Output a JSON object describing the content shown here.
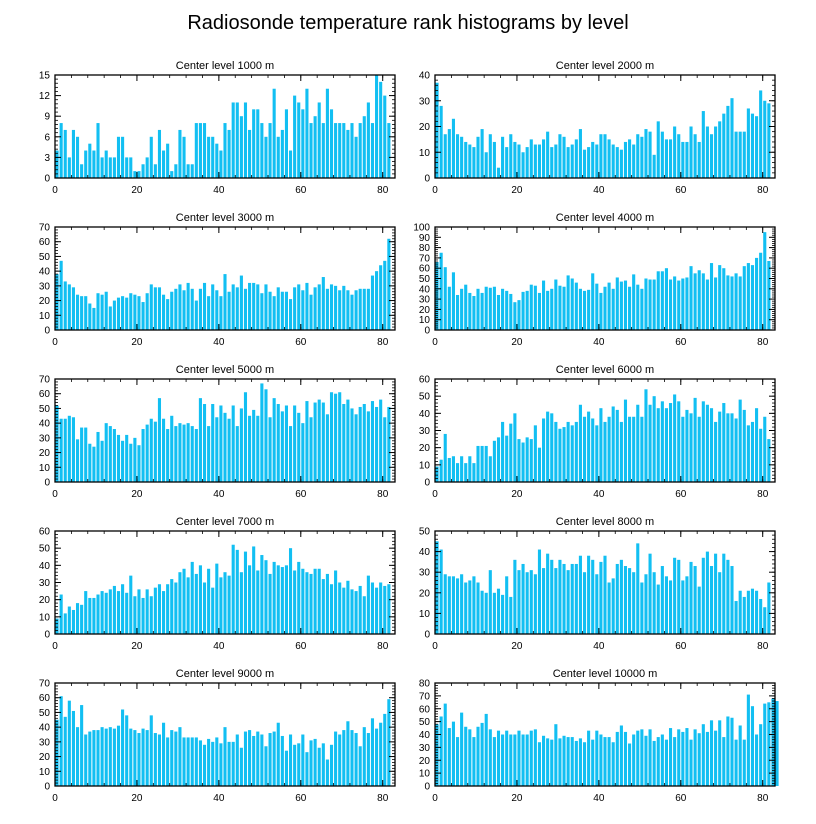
{
  "figure_title": "Radiosonde temperature rank histograms by level",
  "bar_color": "#12bff2",
  "chart_data": [
    {
      "type": "bar",
      "title": "Center level 1000 m",
      "xticks": [
        0,
        20,
        40,
        60,
        80
      ],
      "xlim": [
        0,
        83
      ],
      "ylim": [
        0,
        15
      ],
      "yticks": [
        0,
        3,
        6,
        9,
        12,
        15
      ],
      "values": [
        4,
        8,
        7,
        3,
        7,
        6,
        2,
        4,
        5,
        4,
        8,
        3,
        4,
        3,
        3,
        6,
        6,
        3,
        3,
        1,
        1,
        2,
        3,
        6,
        2,
        7,
        4,
        5,
        1,
        2,
        7,
        6,
        2,
        2,
        8,
        8,
        8,
        6,
        6,
        5,
        4,
        8,
        7,
        11,
        11,
        9,
        11,
        7,
        10,
        10,
        8,
        6,
        8,
        13,
        6,
        7,
        10,
        4,
        12,
        11,
        10,
        13,
        8,
        9,
        11,
        8,
        13,
        10,
        8,
        8,
        8,
        7,
        8,
        6,
        8,
        9,
        11,
        8,
        15,
        14,
        12,
        8
      ]
    },
    {
      "type": "bar",
      "title": "Center level 2000 m",
      "xticks": [
        0,
        20,
        40,
        60,
        80
      ],
      "xlim": [
        0,
        83
      ],
      "ylim": [
        0,
        40
      ],
      "yticks": [
        0,
        10,
        20,
        30,
        40
      ],
      "values": [
        37,
        28,
        17,
        19,
        23,
        17,
        16,
        14,
        13,
        12,
        16,
        19,
        10,
        17,
        14,
        4,
        16,
        12,
        17,
        14,
        13,
        10,
        12,
        15,
        13,
        13,
        15,
        18,
        12,
        13,
        17,
        16,
        12,
        13,
        15,
        19,
        11,
        12,
        14,
        13,
        17,
        17,
        15,
        13,
        12,
        11,
        14,
        15,
        13,
        17,
        16,
        19,
        18,
        9,
        22,
        18,
        15,
        15,
        20,
        17,
        14,
        14,
        20,
        17,
        14,
        26,
        20,
        17,
        20,
        22,
        25,
        28,
        31,
        18,
        18,
        18,
        27,
        25,
        24,
        34,
        30,
        29
      ]
    },
    {
      "type": "bar",
      "title": "Center level 3000 m",
      "xticks": [
        0,
        20,
        40,
        60,
        80
      ],
      "xlim": [
        0,
        83
      ],
      "ylim": [
        0,
        70
      ],
      "yticks": [
        0,
        10,
        20,
        30,
        40,
        50,
        60,
        70
      ],
      "values": [
        38,
        47,
        33,
        31,
        29,
        24,
        23,
        23,
        18,
        15,
        25,
        24,
        26,
        16,
        20,
        22,
        23,
        22,
        25,
        24,
        23,
        19,
        25,
        31,
        29,
        29,
        24,
        21,
        26,
        28,
        31,
        27,
        32,
        28,
        20,
        28,
        32,
        23,
        31,
        27,
        23,
        38,
        26,
        31,
        29,
        37,
        28,
        32,
        32,
        31,
        25,
        31,
        26,
        23,
        29,
        26,
        26,
        21,
        29,
        31,
        27,
        32,
        24,
        29,
        31,
        36,
        28,
        31,
        30,
        27,
        30,
        27,
        24,
        27,
        28,
        28,
        28,
        37,
        40,
        44,
        47,
        62
      ]
    },
    {
      "type": "bar",
      "title": "Center level 4000 m",
      "xticks": [
        0,
        20,
        40,
        60,
        80
      ],
      "xlim": [
        0,
        83
      ],
      "ylim": [
        0,
        100
      ],
      "yticks": [
        0,
        10,
        20,
        30,
        40,
        50,
        60,
        70,
        80,
        90,
        100
      ],
      "values": [
        66,
        75,
        61,
        42,
        56,
        34,
        40,
        44,
        36,
        33,
        40,
        36,
        42,
        41,
        42,
        34,
        40,
        38,
        35,
        27,
        29,
        37,
        38,
        44,
        43,
        36,
        48,
        38,
        40,
        49,
        43,
        42,
        53,
        50,
        46,
        40,
        38,
        39,
        55,
        45,
        36,
        42,
        46,
        40,
        51,
        47,
        48,
        42,
        54,
        44,
        40,
        50,
        49,
        49,
        57,
        57,
        60,
        49,
        52,
        48,
        50,
        51,
        62,
        55,
        58,
        55,
        49,
        65,
        51,
        63,
        60,
        53,
        52,
        55,
        52,
        62,
        65,
        63,
        70,
        75,
        95,
        67
      ]
    },
    {
      "type": "bar",
      "title": "Center level 5000 m",
      "xticks": [
        0,
        20,
        40,
        60,
        80
      ],
      "xlim": [
        0,
        83
      ],
      "ylim": [
        0,
        70
      ],
      "yticks": [
        0,
        10,
        20,
        30,
        40,
        50,
        60,
        70
      ],
      "values": [
        52,
        43,
        43,
        45,
        44,
        29,
        37,
        37,
        26,
        24,
        34,
        28,
        40,
        38,
        36,
        32,
        28,
        32,
        26,
        30,
        25,
        36,
        39,
        43,
        41,
        57,
        43,
        36,
        45,
        38,
        40,
        39,
        40,
        38,
        36,
        57,
        53,
        38,
        53,
        44,
        52,
        47,
        43,
        52,
        38,
        50,
        61,
        45,
        49,
        45,
        67,
        63,
        44,
        57,
        53,
        48,
        52,
        38,
        52,
        47,
        40,
        55,
        44,
        54,
        56,
        54,
        46,
        61,
        60,
        61,
        53,
        56,
        50,
        46,
        51,
        53,
        48,
        55,
        51,
        56,
        44,
        51
      ]
    },
    {
      "type": "bar",
      "title": "Center level 6000 m",
      "xticks": [
        0,
        20,
        40,
        60,
        80
      ],
      "xlim": [
        0,
        83
      ],
      "ylim": [
        0,
        60
      ],
      "yticks": [
        0,
        10,
        20,
        30,
        40,
        50,
        60
      ],
      "values": [
        9,
        13,
        28,
        14,
        15,
        11,
        15,
        11,
        15,
        11,
        21,
        21,
        21,
        15,
        24,
        26,
        35,
        27,
        34,
        40,
        25,
        23,
        26,
        25,
        33,
        20,
        37,
        41,
        40,
        35,
        31,
        32,
        35,
        33,
        35,
        45,
        38,
        41,
        37,
        33,
        43,
        35,
        38,
        44,
        42,
        35,
        48,
        38,
        38,
        45,
        38,
        54,
        45,
        50,
        43,
        47,
        43,
        46,
        51,
        47,
        38,
        42,
        40,
        49,
        38,
        47,
        45,
        43,
        35,
        41,
        46,
        40,
        40,
        37,
        48,
        42,
        33,
        35,
        43,
        31,
        38,
        25
      ]
    },
    {
      "type": "bar",
      "title": "Center level 7000 m",
      "xticks": [
        0,
        20,
        40,
        60,
        80
      ],
      "xlim": [
        0,
        83
      ],
      "ylim": [
        0,
        60
      ],
      "yticks": [
        0,
        10,
        20,
        30,
        40,
        50,
        60
      ],
      "values": [
        9,
        23,
        12,
        16,
        14,
        18,
        17,
        25,
        21,
        21,
        23,
        25,
        24,
        26,
        28,
        25,
        29,
        24,
        34,
        22,
        26,
        21,
        26,
        22,
        27,
        29,
        25,
        29,
        32,
        30,
        36,
        38,
        33,
        42,
        35,
        40,
        30,
        38,
        27,
        41,
        33,
        36,
        34,
        52,
        49,
        36,
        48,
        40,
        51,
        37,
        46,
        43,
        35,
        42,
        40,
        39,
        40,
        50,
        37,
        42,
        38,
        36,
        35,
        38,
        38,
        32,
        35,
        29,
        37,
        30,
        27,
        31,
        26,
        25,
        28,
        22,
        34,
        30,
        27,
        30,
        28,
        29
      ]
    },
    {
      "type": "bar",
      "title": "Center level 8000 m",
      "xticks": [
        0,
        20,
        40,
        60,
        80
      ],
      "xlim": [
        0,
        83
      ],
      "ylim": [
        0,
        50
      ],
      "yticks": [
        0,
        10,
        20,
        30,
        40,
        50
      ],
      "values": [
        45,
        41,
        29,
        28,
        28,
        27,
        29,
        25,
        26,
        28,
        25,
        21,
        20,
        31,
        20,
        22,
        19,
        28,
        18,
        36,
        31,
        34,
        30,
        31,
        29,
        41,
        32,
        39,
        36,
        32,
        36,
        34,
        31,
        34,
        34,
        38,
        30,
        38,
        36,
        29,
        35,
        38,
        25,
        27,
        34,
        36,
        33,
        32,
        30,
        44,
        25,
        29,
        39,
        30,
        24,
        33,
        28,
        26,
        37,
        36,
        26,
        28,
        35,
        33,
        23,
        37,
        40,
        33,
        39,
        30,
        39,
        36,
        33,
        16,
        21,
        18,
        21,
        22,
        21,
        17,
        13,
        25
      ]
    },
    {
      "type": "bar",
      "title": "Center level 9000 m",
      "xticks": [
        0,
        20,
        40,
        60,
        80
      ],
      "xlim": [
        0,
        83
      ],
      "ylim": [
        0,
        70
      ],
      "yticks": [
        0,
        10,
        20,
        30,
        40,
        50,
        60,
        70
      ],
      "values": [
        45,
        61,
        47,
        58,
        51,
        40,
        55,
        35,
        37,
        38,
        38,
        40,
        39,
        40,
        39,
        41,
        52,
        48,
        39,
        38,
        36,
        39,
        38,
        48,
        36,
        35,
        43,
        33,
        38,
        37,
        40,
        33,
        33,
        33,
        33,
        31,
        28,
        32,
        30,
        33,
        29,
        40,
        30,
        30,
        35,
        26,
        37,
        38,
        34,
        37,
        35,
        27,
        36,
        37,
        43,
        34,
        24,
        35,
        28,
        29,
        35,
        23,
        31,
        32,
        26,
        29,
        18,
        28,
        37,
        35,
        38,
        44,
        38,
        36,
        27,
        40,
        36,
        46,
        39,
        43,
        49,
        59
      ]
    },
    {
      "type": "bar",
      "title": "Center level 10000 m",
      "xticks": [
        0,
        20,
        40,
        60,
        80
      ],
      "xlim": [
        0,
        83
      ],
      "ylim": [
        0,
        80
      ],
      "yticks": [
        0,
        10,
        20,
        30,
        40,
        50,
        60,
        70,
        80
      ],
      "values": [
        48,
        54,
        64,
        45,
        50,
        38,
        57,
        46,
        44,
        38,
        46,
        49,
        56,
        44,
        38,
        43,
        40,
        43,
        40,
        40,
        43,
        40,
        40,
        43,
        44,
        34,
        39,
        37,
        36,
        48,
        37,
        39,
        38,
        38,
        35,
        37,
        34,
        43,
        36,
        43,
        40,
        38,
        38,
        34,
        42,
        47,
        42,
        33,
        40,
        43,
        44,
        39,
        44,
        35,
        38,
        40,
        36,
        45,
        38,
        44,
        42,
        45,
        36,
        44,
        41,
        48,
        42,
        51,
        43,
        51,
        38,
        54,
        53,
        36,
        47,
        36,
        71,
        62,
        40,
        48,
        64,
        65,
        68,
        66
      ]
    }
  ]
}
